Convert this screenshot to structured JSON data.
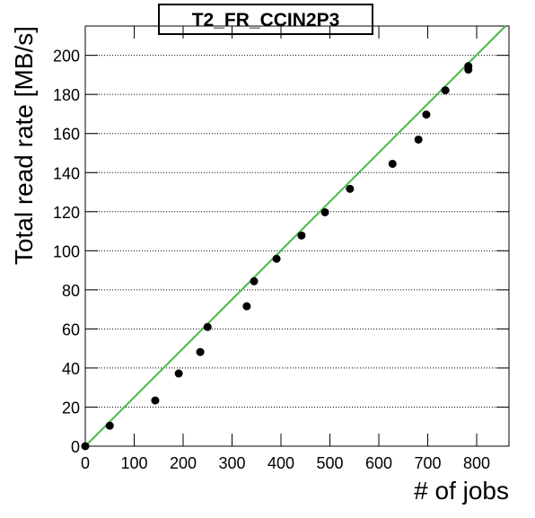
{
  "chart_data": {
    "type": "scatter",
    "title": "T2_FR_CCIN2P3",
    "x_label": "# of jobs",
    "y_label": "Total read rate [MB/s]",
    "x": [
      0,
      50,
      143,
      191,
      235,
      250,
      330,
      345,
      391,
      442,
      490,
      541,
      628,
      681,
      697,
      736,
      783,
      783
    ],
    "values": [
      0,
      10.5,
      23.4,
      37.2,
      48.2,
      61,
      71.6,
      84.4,
      95.9,
      107.8,
      119.7,
      131.7,
      144.5,
      156.9,
      169.7,
      182.1,
      194.5,
      192.7
    ],
    "color": "#000000",
    "fit": {
      "color": "#44bb44",
      "x": [
        0,
        859
      ],
      "y": [
        0,
        215
      ]
    },
    "xlim": [
      0,
      866
    ],
    "ylim": [
      0,
      215
    ],
    "xticks": [
      0,
      100,
      200,
      300,
      400,
      500,
      600,
      700,
      800
    ],
    "yticks": [
      0,
      20,
      40,
      60,
      80,
      100,
      120,
      140,
      160,
      180,
      200
    ],
    "grid": true
  }
}
